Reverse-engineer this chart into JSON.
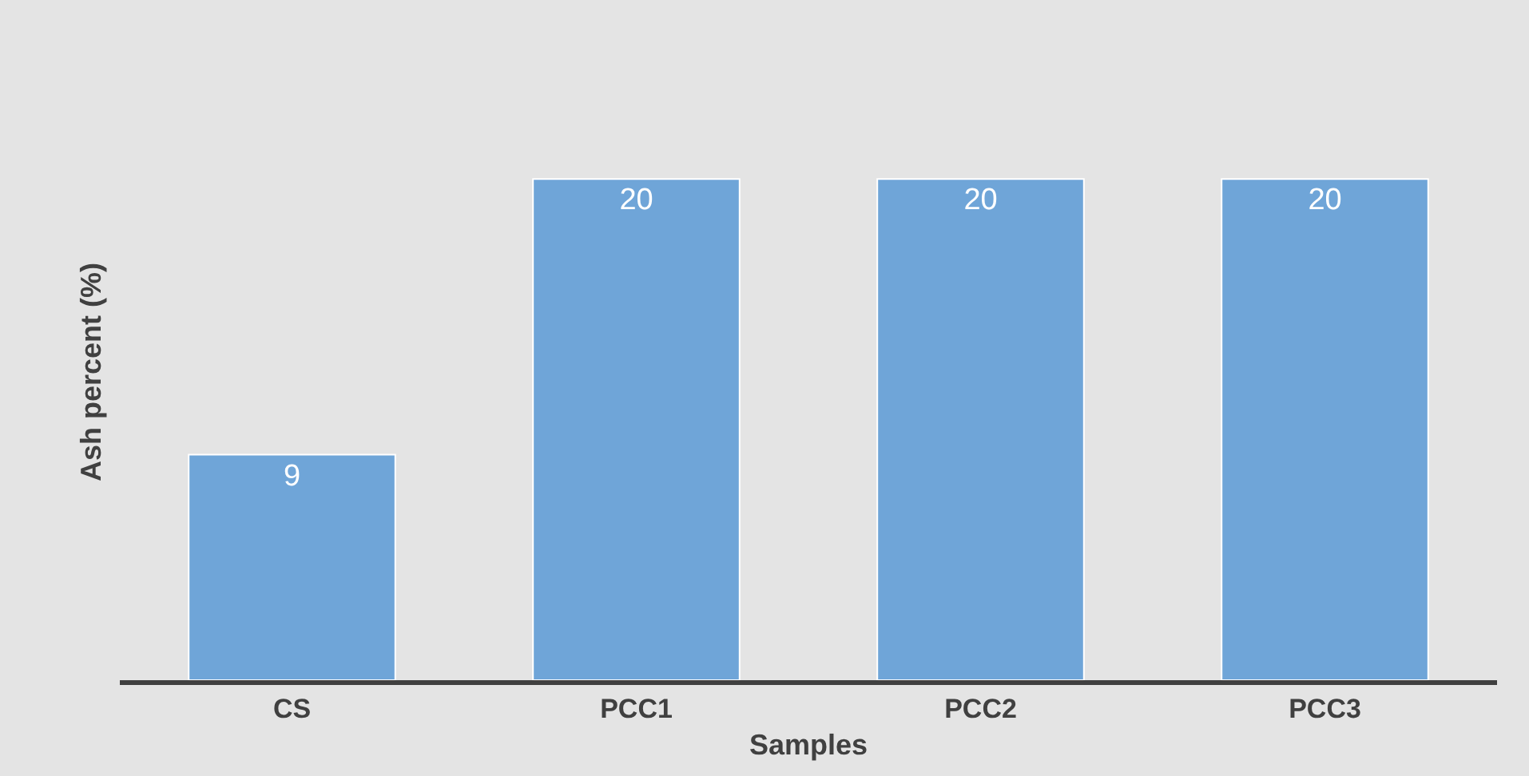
{
  "chart_data": {
    "type": "bar",
    "xlabel": "Samples",
    "ylabel": "Ash percent (%)",
    "categories": [
      "CS",
      "PCC1",
      "PCC2",
      "PCC3"
    ],
    "values": [
      9,
      20,
      20,
      20
    ],
    "color": "#6fa5d8",
    "data_labels": true,
    "grid": false,
    "legend": false
  }
}
